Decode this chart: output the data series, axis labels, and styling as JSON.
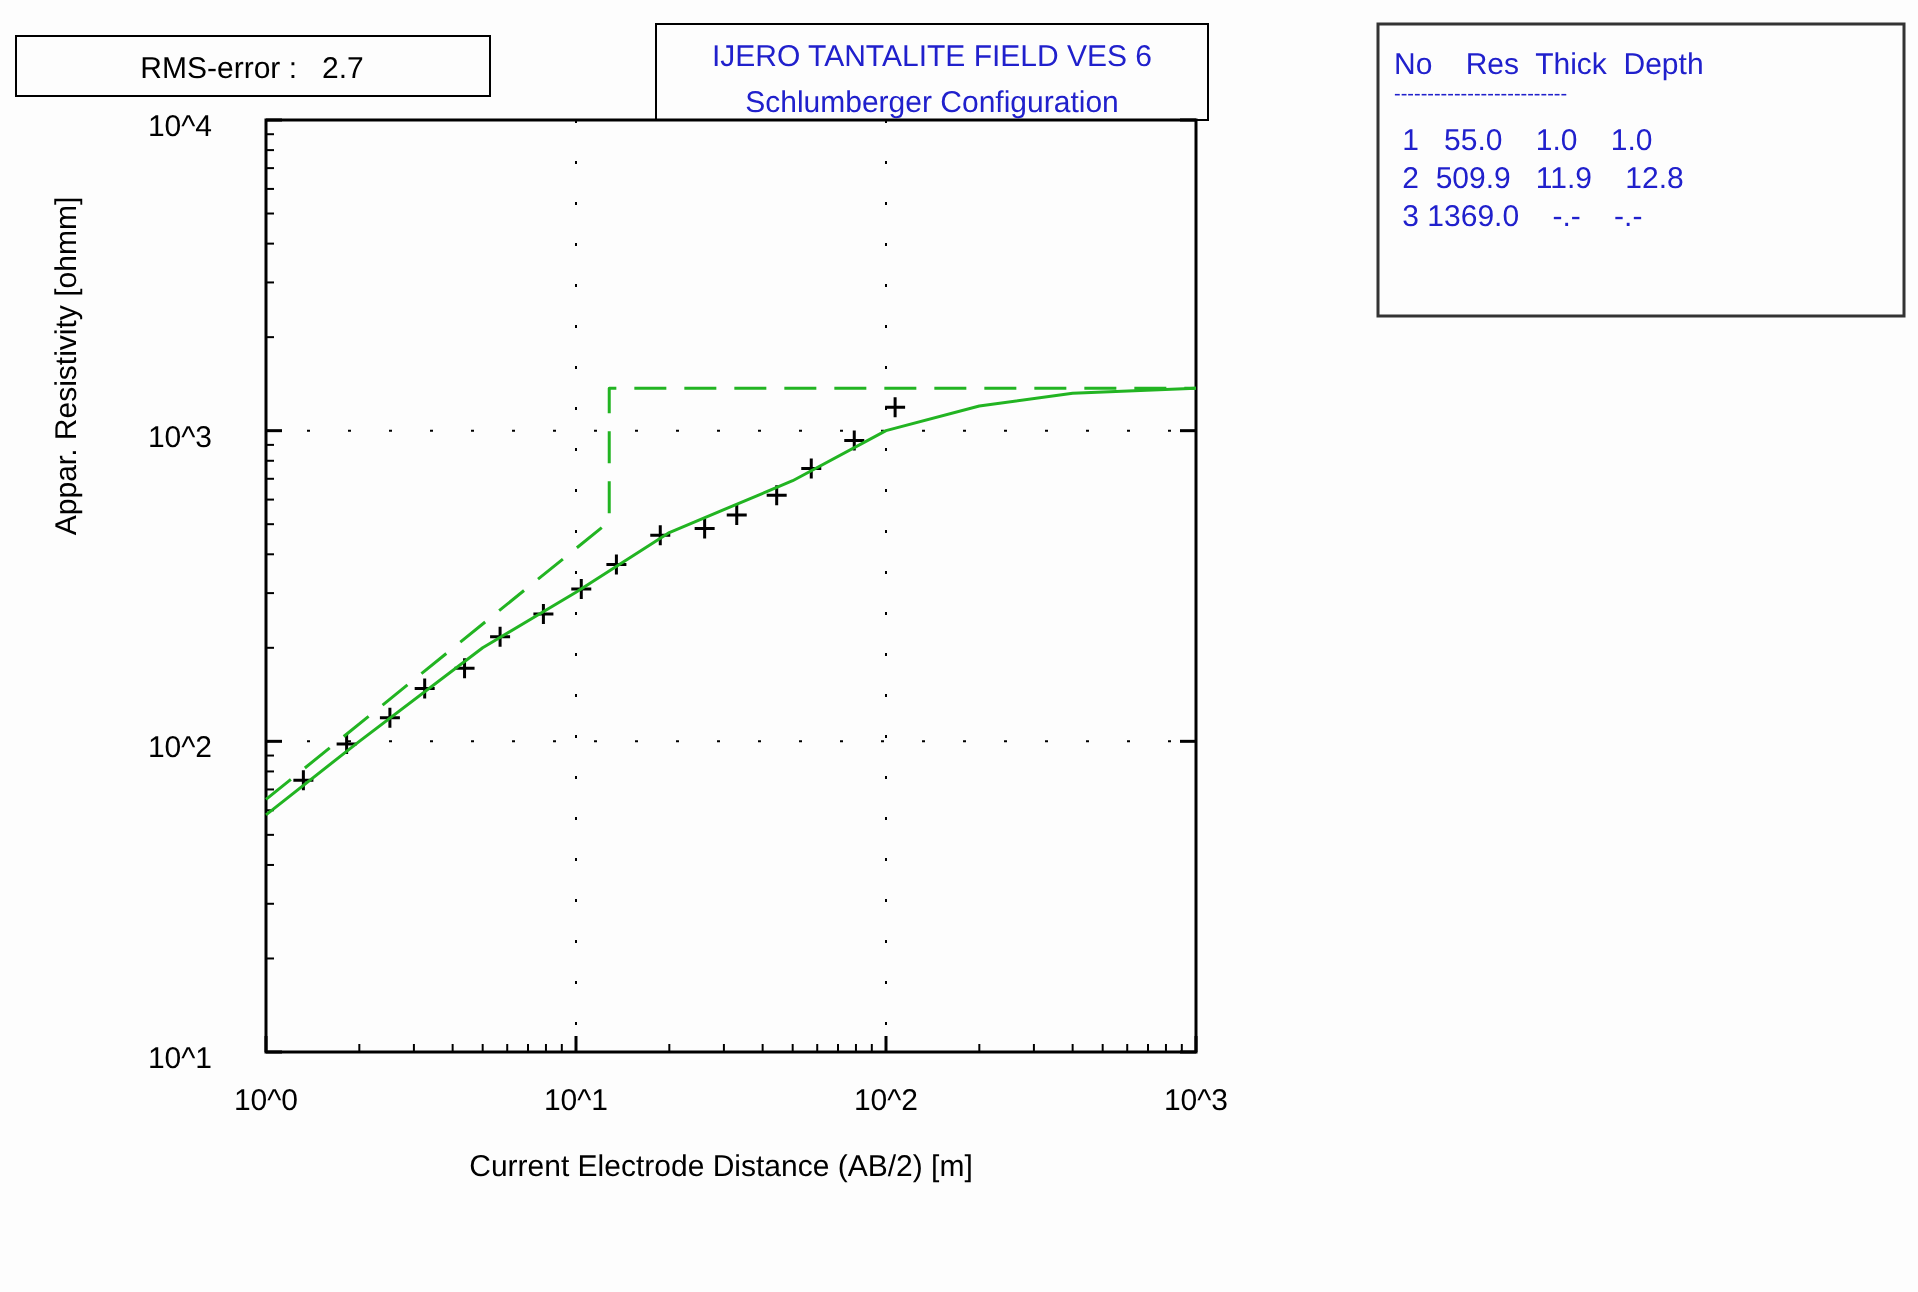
{
  "chart_data": {
    "type": "line",
    "title": "IJERO TANTALITE FIELD VES 6",
    "subtitle": "Schlumberger Configuration",
    "xlabel": "Current Electrode Distance (AB/2) [m]",
    "ylabel": "Appar. Resistivity [ohmm]",
    "annotations": [
      "RMS-error :   2.7",
      "No    Res  Thick  Depth",
      "--------------------------",
      " 1   55.0    1.0    1.0",
      " 2  509.9   11.9    12.8",
      " 3 1369.0    -.-    -.-"
    ],
    "log": "xy",
    "grid": true,
    "xlim": [
      1,
      1000
    ],
    "ylim": [
      10,
      10000
    ],
    "xticks": [
      {
        "value": 1,
        "label": "10^0"
      },
      {
        "value": 10,
        "label": "10^1"
      },
      {
        "value": 100,
        "label": "10^2"
      },
      {
        "value": 1000,
        "label": "10^3"
      }
    ],
    "yticks": [
      {
        "value": 10,
        "label": "10^1"
      },
      {
        "value": 100,
        "label": "10^2"
      },
      {
        "value": 1000,
        "label": "10^3"
      },
      {
        "value": 10000,
        "label": "10^4"
      }
    ],
    "series": [
      {
        "type": "scatter",
        "color": "#000000",
        "marker": "cross",
        "x": [
          1.32,
          1.82,
          2.51,
          3.25,
          4.37,
          5.69,
          7.85,
          10.4,
          13.5,
          18.7,
          26,
          33,
          44.4,
          57.4,
          79,
          107
        ],
        "values": [
          75,
          98,
          119,
          148,
          172,
          217,
          257,
          309,
          371,
          461,
          484,
          535,
          620,
          755,
          929,
          1189
        ]
      },
      {
        "type": "line",
        "color": "#22b422",
        "line_style": "solid",
        "x": [
          1,
          2,
          5,
          10,
          20,
          50,
          100,
          200,
          400,
          1000
        ],
        "values": [
          58,
          100,
          200,
          302,
          470,
          690,
          1000,
          1200,
          1320,
          1369
        ]
      },
      {
        "type": "line",
        "color": "#22b422",
        "line_style": "dashed",
        "x": [
          1,
          12.8,
          12.8,
          1000
        ],
        "values": [
          65,
          509.9,
          1369,
          1369
        ]
      }
    ]
  }
}
